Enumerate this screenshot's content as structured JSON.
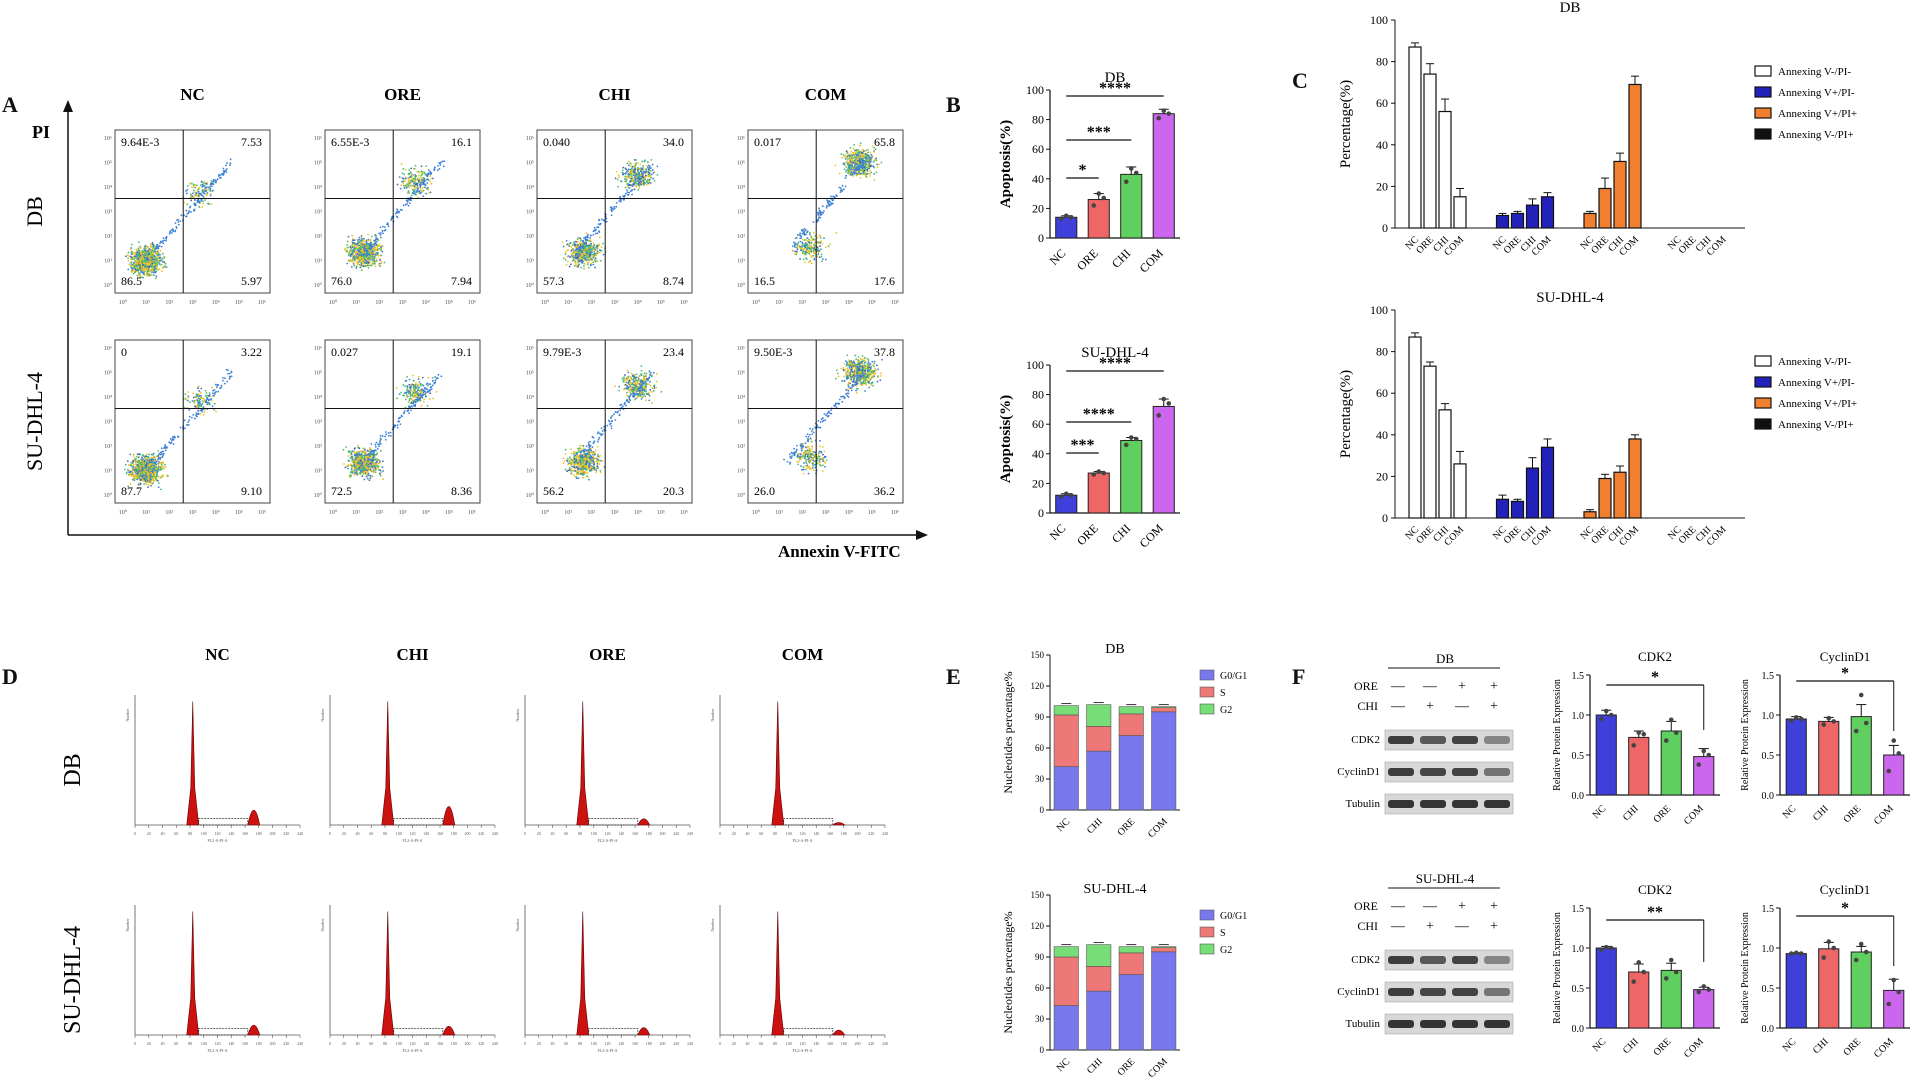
{
  "panels": [
    "A",
    "B",
    "C",
    "D",
    "E",
    "F"
  ],
  "colors": {
    "blue": "#3f3fd9",
    "red": "#ef6666",
    "green": "#5fd05f",
    "violet": "#cc66ee",
    "navy": "#2222bb",
    "orange": "#f08030",
    "g0": "#7777ee",
    "s": "#ee7777",
    "g2": "#77dd77",
    "hist": "#cc1111"
  },
  "flow": {
    "y_axis_label": "PI",
    "x_axis_label": "Annexin V-FITC",
    "rows": [
      "DB",
      "SU-DHL-4"
    ],
    "columns": [
      "NC",
      "ORE",
      "CHI",
      "COM"
    ],
    "tick_labels": [
      "10⁰",
      "10¹",
      "10²",
      "10³",
      "10⁴",
      "10⁵",
      "10⁶"
    ],
    "quadrants": [
      [
        {
          "ul": "9.64E-3",
          "ur": "7.53",
          "ll": "86.5",
          "lr": "5.97"
        },
        {
          "ul": "6.55E-3",
          "ur": "16.1",
          "ll": "76.0",
          "lr": "7.94"
        },
        {
          "ul": "0.040",
          "ur": "34.0",
          "ll": "57.3",
          "lr": "8.74"
        },
        {
          "ul": "0.017",
          "ur": "65.8",
          "ll": "16.5",
          "lr": "17.6"
        }
      ],
      [
        {
          "ul": "0",
          "ur": "3.22",
          "ll": "87.7",
          "lr": "9.10"
        },
        {
          "ul": "0.027",
          "ur": "19.1",
          "ll": "72.5",
          "lr": "8.36"
        },
        {
          "ul": "9.79E-3",
          "ur": "23.4",
          "ll": "56.2",
          "lr": "20.3"
        },
        {
          "ul": "9.50E-3",
          "ur": "37.8",
          "ll": "26.0",
          "lr": "36.2"
        }
      ]
    ]
  },
  "chart_data": [
    {
      "id": "B1",
      "type": "bar",
      "title": "DB",
      "ylabel": "Apoptosis(%)",
      "ylim": [
        0,
        100
      ],
      "yticks": [
        0,
        20,
        40,
        60,
        80,
        100
      ],
      "categories": [
        "NC",
        "ORE",
        "CHI",
        "COM"
      ],
      "values": [
        14,
        26,
        43,
        84
      ],
      "errors": [
        1,
        4,
        5,
        3
      ],
      "points": [
        [
          13,
          15,
          14
        ],
        [
          22,
          30,
          27
        ],
        [
          38,
          47,
          44
        ],
        [
          81,
          86,
          84
        ]
      ],
      "sig": [
        {
          "from": 0,
          "to": 1,
          "label": "*"
        },
        {
          "from": 0,
          "to": 2,
          "label": "***"
        },
        {
          "from": 0,
          "to": 3,
          "label": "****"
        }
      ]
    },
    {
      "id": "B2",
      "type": "bar",
      "title": "SU-DHL-4",
      "ylabel": "Apoptosis(%)",
      "ylim": [
        0,
        100
      ],
      "yticks": [
        0,
        20,
        40,
        60,
        80,
        100
      ],
      "categories": [
        "NC",
        "ORE",
        "CHI",
        "COM"
      ],
      "values": [
        12,
        27,
        49,
        72
      ],
      "errors": [
        1,
        1,
        2,
        5
      ],
      "points": [
        [
          11,
          13,
          12
        ],
        [
          26,
          28,
          27
        ],
        [
          46,
          51,
          50
        ],
        [
          66,
          77,
          74
        ]
      ],
      "sig": [
        {
          "from": 0,
          "to": 1,
          "label": "***"
        },
        {
          "from": 0,
          "to": 2,
          "label": "****"
        },
        {
          "from": 0,
          "to": 3,
          "label": "****"
        }
      ]
    },
    {
      "id": "C1",
      "type": "bar",
      "title": "DB",
      "ylabel": "Percentage(%)",
      "ylim": [
        0,
        100
      ],
      "yticks": [
        0,
        20,
        40,
        60,
        80,
        100
      ],
      "categories": [
        "NC",
        "ORE",
        "CHI",
        "COM"
      ],
      "series": [
        {
          "name": "Annexing V-/PI-",
          "values": [
            87,
            74,
            56,
            15
          ],
          "errors": [
            2,
            5,
            6,
            4
          ]
        },
        {
          "name": "Annexing V+/PI-",
          "values": [
            6,
            7,
            11,
            15
          ],
          "errors": [
            1,
            1,
            3,
            2
          ]
        },
        {
          "name": "Annexing V+/PI+",
          "values": [
            7,
            19,
            32,
            69
          ],
          "errors": [
            1,
            5,
            4,
            4
          ]
        },
        {
          "name": "Annexing V-/PI+",
          "values": [
            0,
            0,
            0,
            0
          ],
          "errors": [
            0,
            0,
            0,
            0
          ]
        }
      ]
    },
    {
      "id": "C2",
      "type": "bar",
      "title": "SU-DHL-4",
      "ylabel": "Percentage(%)",
      "ylim": [
        0,
        100
      ],
      "yticks": [
        0,
        20,
        40,
        60,
        80,
        100
      ],
      "categories": [
        "NC",
        "ORE",
        "CHI",
        "COM"
      ],
      "series": [
        {
          "name": "Annexing V-/PI-",
          "values": [
            87,
            73,
            52,
            26
          ],
          "errors": [
            2,
            2,
            3,
            6
          ]
        },
        {
          "name": "Annexing V+/PI-",
          "values": [
            9,
            8,
            24,
            34
          ],
          "errors": [
            2,
            1,
            5,
            4
          ]
        },
        {
          "name": "Annexing V+/PI+",
          "values": [
            3,
            19,
            22,
            38
          ],
          "errors": [
            1,
            2,
            3,
            2
          ]
        },
        {
          "name": "Annexing V-/PI+",
          "values": [
            0,
            0,
            0,
            0
          ],
          "errors": [
            0,
            0,
            0,
            0
          ]
        }
      ]
    },
    {
      "id": "D",
      "type": "histogram",
      "rows": [
        "DB",
        "SU-DHL-4"
      ],
      "columns": [
        "NC",
        "CHI",
        "ORE",
        "COM"
      ],
      "xlabel": "FL2-A-PI-A",
      "ylabel": "Number",
      "xticks": [
        "0",
        "20",
        "40",
        "60",
        "80",
        "100",
        "120",
        "140",
        "160",
        "180",
        "200",
        "220",
        "240"
      ],
      "peaks": [
        [
          {
            "g1": 1.0,
            "g2": 0.12
          },
          {
            "g1": 1.0,
            "g2": 0.15
          },
          {
            "g1": 1.0,
            "g2": 0.05
          },
          {
            "g1": 1.0,
            "g2": 0.02
          }
        ],
        [
          {
            "g1": 1.0,
            "g2": 0.08
          },
          {
            "g1": 1.0,
            "g2": 0.07
          },
          {
            "g1": 1.0,
            "g2": 0.06
          },
          {
            "g1": 1.0,
            "g2": 0.04
          }
        ]
      ]
    },
    {
      "id": "E1",
      "type": "stacked-bar",
      "title": "DB",
      "ylabel": "Nucleotides percentage%",
      "ylim": [
        0,
        150
      ],
      "yticks": [
        0,
        30,
        60,
        90,
        120,
        150
      ],
      "categories": [
        "NC",
        "CHI",
        "ORE",
        "COM"
      ],
      "series": [
        {
          "name": "G0/G1",
          "values": [
            42,
            57,
            72,
            95
          ]
        },
        {
          "name": "S",
          "values": [
            50,
            24,
            21,
            4
          ]
        },
        {
          "name": "G2",
          "values": [
            9,
            21,
            7,
            1
          ]
        }
      ]
    },
    {
      "id": "E2",
      "type": "stacked-bar",
      "title": "SU-DHL-4",
      "ylabel": "Nucleotides percentage%",
      "ylim": [
        0,
        150
      ],
      "yticks": [
        0,
        30,
        60,
        90,
        120,
        150
      ],
      "categories": [
        "NC",
        "CHI",
        "ORE",
        "COM"
      ],
      "series": [
        {
          "name": "G0/G1",
          "values": [
            43,
            57,
            73,
            95
          ]
        },
        {
          "name": "S",
          "values": [
            47,
            24,
            21,
            4
          ]
        },
        {
          "name": "G2",
          "values": [
            10,
            21,
            6,
            1
          ]
        }
      ]
    },
    {
      "id": "F1",
      "type": "bar",
      "title": "CDK2",
      "ylabel": "Relative Protein Expression",
      "ylim": [
        0,
        1.5
      ],
      "yticks": [
        "0.0",
        "0.5",
        "1.0",
        "1.5"
      ],
      "categories": [
        "NC",
        "CHI",
        "ORE",
        "COM"
      ],
      "values": [
        1.0,
        0.72,
        0.8,
        0.48
      ],
      "errors": [
        0.06,
        0.08,
        0.12,
        0.1
      ],
      "points": [
        [
          0.95,
          1.05,
          1.0
        ],
        [
          0.62,
          0.78,
          0.76
        ],
        [
          0.68,
          0.94,
          0.78
        ],
        [
          0.38,
          0.55,
          0.5
        ]
      ],
      "sig": [
        {
          "from": 0,
          "to": 3,
          "label": "*"
        }
      ]
    },
    {
      "id": "F2",
      "type": "bar",
      "title": "CyclinD1",
      "ylabel": "Relative Protein Expression",
      "ylim": [
        0,
        1.5
      ],
      "yticks": [
        "0.0",
        "0.5",
        "1.0",
        "1.5"
      ],
      "categories": [
        "NC",
        "CHI",
        "ORE",
        "COM"
      ],
      "values": [
        0.95,
        0.92,
        0.98,
        0.5
      ],
      "errors": [
        0.03,
        0.05,
        0.15,
        0.12
      ],
      "points": [
        [
          0.93,
          0.97,
          0.95
        ],
        [
          0.88,
          0.96,
          0.92
        ],
        [
          0.8,
          1.25,
          0.9
        ],
        [
          0.3,
          0.68,
          0.52
        ]
      ],
      "sig": [
        {
          "from": 0,
          "to": 3,
          "label": "*"
        }
      ]
    },
    {
      "id": "F3",
      "type": "bar",
      "title": "CDK2",
      "ylabel": "Relative Protein Expression",
      "ylim": [
        0,
        1.5
      ],
      "yticks": [
        "0.0",
        "0.5",
        "1.0",
        "1.5"
      ],
      "categories": [
        "NC",
        "CHI",
        "ORE",
        "COM"
      ],
      "values": [
        1.0,
        0.7,
        0.72,
        0.48
      ],
      "errors": [
        0.02,
        0.1,
        0.09,
        0.03
      ],
      "points": [
        [
          0.98,
          1.01,
          1.0
        ],
        [
          0.58,
          0.82,
          0.7
        ],
        [
          0.62,
          0.85,
          0.7
        ],
        [
          0.45,
          0.52,
          0.48
        ]
      ],
      "sig": [
        {
          "from": 0,
          "to": 3,
          "label": "**"
        }
      ]
    },
    {
      "id": "F4",
      "type": "bar",
      "title": "CyclinD1",
      "ylabel": "Relative Protein Expression",
      "ylim": [
        0,
        1.5
      ],
      "yticks": [
        "0.0",
        "0.5",
        "1.0",
        "1.5"
      ],
      "categories": [
        "NC",
        "CHI",
        "ORE",
        "COM"
      ],
      "values": [
        0.93,
        0.99,
        0.95,
        0.47
      ],
      "errors": [
        0.01,
        0.08,
        0.07,
        0.14
      ],
      "points": [
        [
          0.93,
          0.94,
          0.93
        ],
        [
          0.88,
          1.08,
          1.0
        ],
        [
          0.85,
          1.05,
          0.95
        ],
        [
          0.3,
          0.6,
          0.45
        ]
      ],
      "sig": [
        {
          "from": 0,
          "to": 3,
          "label": "*"
        }
      ]
    }
  ],
  "western": [
    {
      "title": "DB",
      "ore": [
        "—",
        "—",
        "+",
        "+"
      ],
      "chi": [
        "—",
        "+",
        "—",
        "+"
      ],
      "ore_label": "ORE",
      "chi_label": "CHI",
      "bands": [
        "CDK2",
        "CyclinD1",
        "Tubulin"
      ]
    },
    {
      "title": "SU-DHL-4",
      "ore": [
        "—",
        "—",
        "+",
        "+"
      ],
      "chi": [
        "—",
        "+",
        "—",
        "+"
      ],
      "ore_label": "ORE",
      "chi_label": "CHI",
      "bands": [
        "CDK2",
        "CyclinD1",
        "Tubulin"
      ]
    }
  ]
}
